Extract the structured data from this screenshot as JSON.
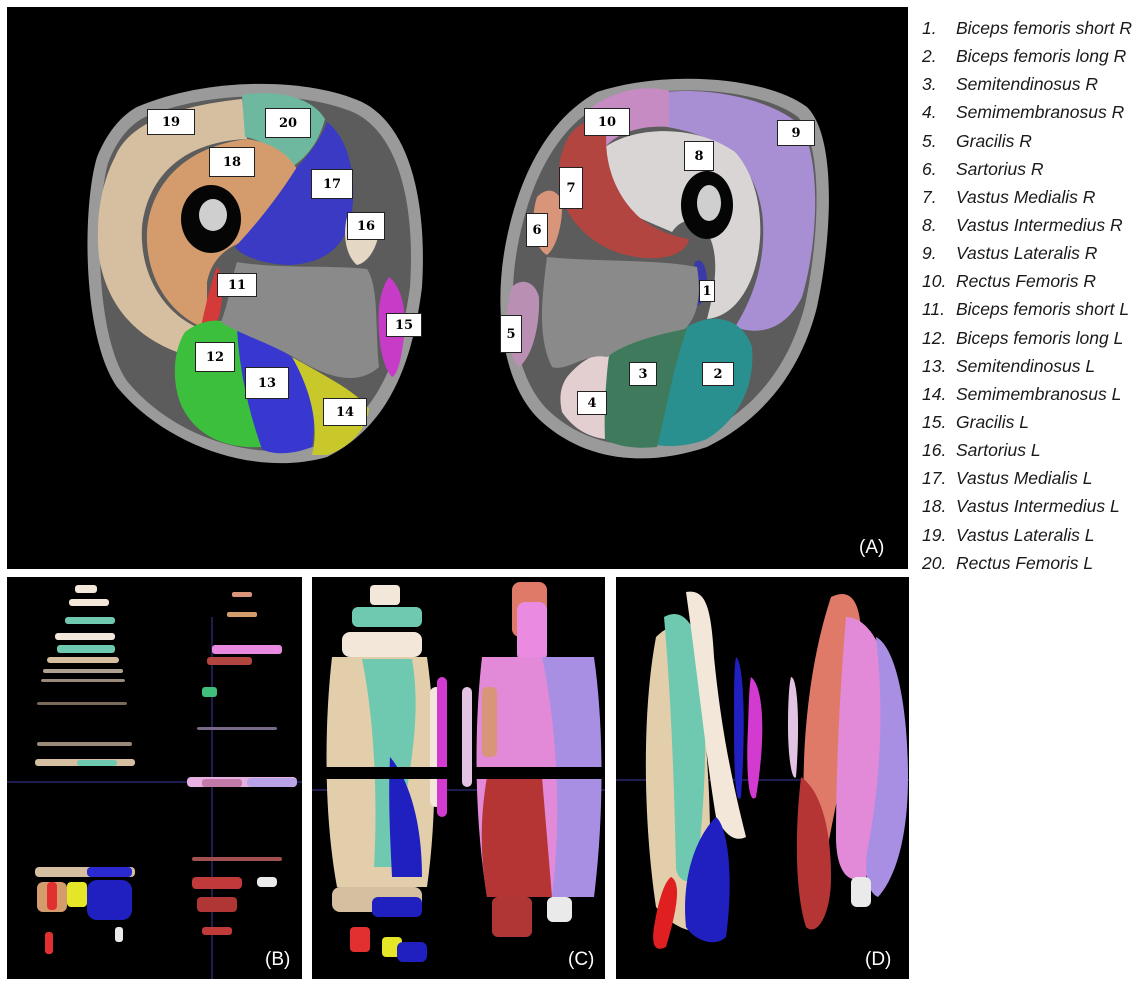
{
  "legend": [
    {
      "num": "1.",
      "label": "Biceps femoris short R"
    },
    {
      "num": "2.",
      "label": "Biceps femoris long R"
    },
    {
      "num": "3.",
      "label": "Semitendinosus R"
    },
    {
      "num": "4.",
      "label": "Semimembranosus R"
    },
    {
      "num": "5.",
      "label": "Gracilis R"
    },
    {
      "num": "6.",
      "label": "Sartorius R"
    },
    {
      "num": "7.",
      "label": "Vastus Medialis R"
    },
    {
      "num": "8.",
      "label": "Vastus Intermedius R"
    },
    {
      "num": "9.",
      "label": "Vastus Lateralis R"
    },
    {
      "num": "10.",
      "label": "Rectus Femoris R"
    },
    {
      "num": "11.",
      "label": "Biceps femoris short L"
    },
    {
      "num": "12.",
      "label": "Biceps femoris long L"
    },
    {
      "num": "13.",
      "label": "Semitendinosus L"
    },
    {
      "num": "14.",
      "label": "Semimembranosus L"
    },
    {
      "num": "15.",
      "label": "Gracilis L"
    },
    {
      "num": "16.",
      "label": "Sartorius L"
    },
    {
      "num": "17.",
      "label": "Vastus Medialis L"
    },
    {
      "num": "18.",
      "label": "Vastus Intermedius L"
    },
    {
      "num": "19.",
      "label": "Vastus Lateralis L"
    },
    {
      "num": "20.",
      "label": "Rectus Femoris L"
    }
  ],
  "panels": {
    "a": "(A)",
    "b": "(B)",
    "c": "(C)",
    "d": "(D)"
  },
  "muscle_tags": [
    "1",
    "2",
    "3",
    "4",
    "5",
    "6",
    "7",
    "8",
    "9",
    "10",
    "11",
    "12",
    "13",
    "14",
    "15",
    "16",
    "17",
    "18",
    "19",
    "20"
  ],
  "colors": {
    "background": "#000000",
    "biceps_femoris_short": "#d43a3a",
    "biceps_femoris_long": "#2a8f8f",
    "semitendinosus": "#3f7a5c",
    "semimembranosus": "#e3cfd0",
    "gracilis": "#b98fb4",
    "sartorius": "#d9957a",
    "vastus_medialis": "#b2453f",
    "vastus_intermedius": "#d9d5d5",
    "vastus_lateralis": "#a88fd4",
    "rectus_femoris": "#c78bc3",
    "bf_long_L": "#3cbf3c",
    "semitendinosus_L": "#3838d0",
    "semimembranosus_L": "#c8c82a",
    "gracilis_L": "#c63cc6",
    "sartorius_L": "#e4d8c4",
    "vastus_medialis_L": "#3a3ac4",
    "vastus_intermedius_L": "#d49c6c",
    "vastus_lateralis_L": "#d6bfa0",
    "rectus_femoris_L": "#6fb8a0"
  }
}
